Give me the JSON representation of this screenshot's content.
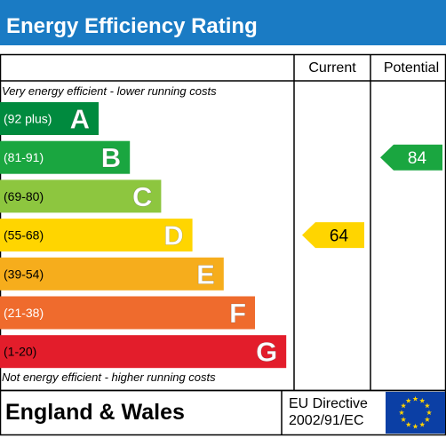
{
  "title": "Energy Efficiency Rating",
  "columns": {
    "current": "Current",
    "potential": "Potential"
  },
  "captions": {
    "top": "Very energy efficient - lower running costs",
    "bottom": "Not energy efficient - higher running costs"
  },
  "footer": {
    "country": "England & Wales",
    "directive_line1": "EU Directive",
    "directive_line2": "2002/91/EC"
  },
  "colors": {
    "title_bar": "#1a7bc4",
    "eu_flag": "#0b3fa5",
    "eu_stars": "#ffd200",
    "border": "#000000"
  },
  "chart_data": {
    "type": "bar",
    "title": "Energy Efficiency Rating",
    "categories": [
      "A",
      "B",
      "C",
      "D",
      "E",
      "F",
      "G"
    ],
    "ranges": [
      "(92 plus)",
      "(81-91)",
      "(69-80)",
      "(55-68)",
      "(39-54)",
      "(21-38)",
      "(1-20)"
    ],
    "band_colors": [
      "#008a3e",
      "#1aa640",
      "#8dc63f",
      "#ffd500",
      "#f6ad1c",
      "#ef6b2d",
      "#e31d2b"
    ],
    "range_text_colors": [
      "#ffffff",
      "#ffffff",
      "#000000",
      "#000000",
      "#000000",
      "#ffffff",
      "#000000"
    ],
    "bands": [
      {
        "letter": "A",
        "range": "(92 plus)",
        "min": 92,
        "max": 100
      },
      {
        "letter": "B",
        "range": "(81-91)",
        "min": 81,
        "max": 91
      },
      {
        "letter": "C",
        "range": "(69-80)",
        "min": 69,
        "max": 80
      },
      {
        "letter": "D",
        "range": "(55-68)",
        "min": 55,
        "max": 68
      },
      {
        "letter": "E",
        "range": "(39-54)",
        "min": 39,
        "max": 54
      },
      {
        "letter": "F",
        "range": "(21-38)",
        "min": 21,
        "max": 38
      },
      {
        "letter": "G",
        "range": "(1-20)",
        "min": 1,
        "max": 20
      }
    ],
    "series": [
      {
        "name": "Current",
        "value": 64,
        "band": "D",
        "color": "#ffd500",
        "text_color": "#000000"
      },
      {
        "name": "Potential",
        "value": 84,
        "band": "B",
        "color": "#1aa640",
        "text_color": "#ffffff"
      }
    ]
  }
}
